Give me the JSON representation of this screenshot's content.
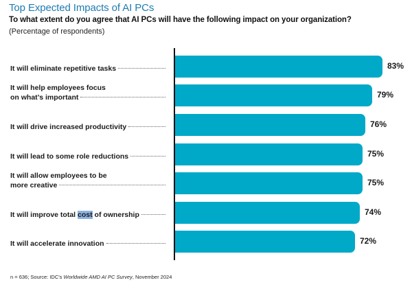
{
  "header": {
    "title": "Top Expected Impacts of AI PCs",
    "question": "To what extent do you agree that AI PCs will have the following impact on your organization?",
    "note": "(Percentage of respondents)"
  },
  "footer": {
    "source_prefix": "n = 636; Source: IDC's ",
    "source_italic": "Worldwide AMD AI PC Survey",
    "source_suffix": ", November 2024"
  },
  "colors": {
    "title": "#1e7bb0",
    "bar": "#00a9c8",
    "axis": "#111111",
    "selection_highlight": "#8db3e2"
  },
  "chart_data": {
    "type": "bar",
    "orientation": "horizontal",
    "title": "Top Expected Impacts of AI PCs",
    "subtitle": "To what extent do you agree that AI PCs will have the following impact on your organization?",
    "note": "(Percentage of respondents)",
    "xlabel": "",
    "ylabel": "",
    "unit": "%",
    "grid": false,
    "legend": null,
    "categories": [
      "It will eliminate repetitive tasks",
      "It will help employees focus on what's important",
      "It will drive increased productivity",
      "It will lead to some role reductions",
      "It will allow employees to be more creative",
      "It will improve total cost of ownership",
      "It will accelerate innovation"
    ],
    "values": [
      83,
      79,
      76,
      75,
      75,
      74,
      72
    ],
    "value_labels": [
      "83%",
      "79%",
      "76%",
      "75%",
      "75%",
      "74%",
      "72%"
    ],
    "source": "n = 636; Source: IDC's Worldwide AMD AI PC Survey, November 2024"
  },
  "rows": [
    {
      "lines": [],
      "last": "It will eliminate repetitive tasks",
      "value": 83,
      "value_label": "83%"
    },
    {
      "lines": [
        "It will help employees focus"
      ],
      "last": "on what’s important",
      "value": 79,
      "value_label": "79%"
    },
    {
      "lines": [],
      "last": "It will drive increased productivity",
      "value": 76,
      "value_label": "76%"
    },
    {
      "lines": [],
      "last": "It will lead to some role reductions",
      "value": 75,
      "value_label": "75%"
    },
    {
      "lines": [
        "It will allow employees to be"
      ],
      "last": "more creative",
      "value": 75,
      "value_label": "75%"
    },
    {
      "lines": [],
      "last_pre": "It will improve total ",
      "last_hl": "cost",
      "last_post": " of ownership",
      "value": 74,
      "value_label": "74%"
    },
    {
      "lines": [],
      "last": "It will accelerate innovation",
      "value": 72,
      "value_label": "72%"
    }
  ]
}
